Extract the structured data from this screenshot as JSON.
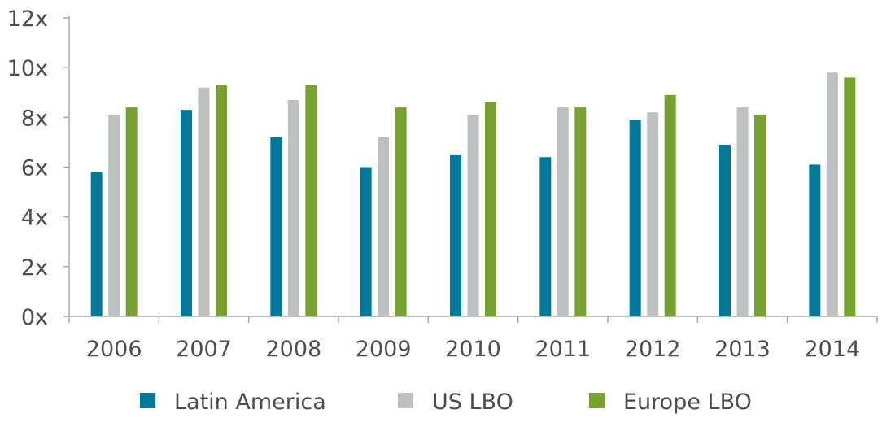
{
  "chart_data": {
    "type": "bar",
    "title": "",
    "xlabel": "",
    "ylabel": "",
    "categories": [
      "2006",
      "2007",
      "2008",
      "2009",
      "2010",
      "2011",
      "2012",
      "2013",
      "2014"
    ],
    "series": [
      {
        "name": "Latin America",
        "color": "#00789A",
        "values": [
          5.8,
          8.3,
          7.2,
          6.0,
          6.5,
          6.4,
          7.9,
          6.9,
          6.1
        ]
      },
      {
        "name": "US LBO",
        "color": "#BFC0C2",
        "values": [
          8.1,
          9.2,
          8.7,
          7.2,
          8.1,
          8.4,
          8.2,
          8.4,
          9.8
        ]
      },
      {
        "name": "Europe LBO",
        "color": "#78A22F",
        "values": [
          8.4,
          9.3,
          9.3,
          8.4,
          8.6,
          8.4,
          8.9,
          8.1,
          9.6
        ]
      }
    ],
    "ylim": [
      0,
      12
    ],
    "yticks": [
      "0x",
      "2x",
      "4x",
      "6x",
      "8x",
      "10x",
      "12x"
    ],
    "grid": false,
    "legend_position": "bottom"
  }
}
